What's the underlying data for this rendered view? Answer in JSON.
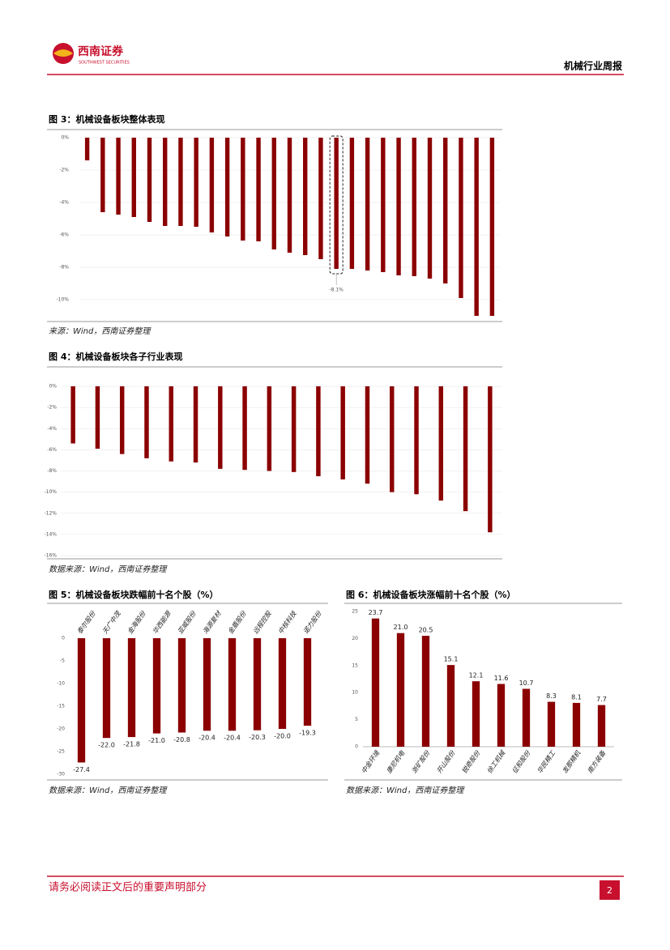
{
  "header": {
    "logo_cn": "西南证券",
    "logo_en": "SOUTHWEST SECURITIES",
    "report": "机械行业周报"
  },
  "chart_data": [
    {
      "type": "bar",
      "title": "图 3：机械设备板块整体表现",
      "source": "来源：Wind，西南证券整理",
      "color": "#8b0000",
      "grid": true,
      "categories": [
        null,
        null,
        null,
        null,
        null,
        null,
        null,
        null,
        null,
        null,
        null,
        null,
        null,
        null,
        null,
        null,
        null,
        null,
        null,
        null,
        null,
        null,
        null,
        null,
        null,
        null,
        null
      ],
      "values": [
        -1.4,
        -4.6,
        -4.75,
        -4.9,
        -5.2,
        -5.45,
        -5.45,
        -5.5,
        -5.85,
        -6.1,
        -6.35,
        -6.4,
        -6.9,
        -7.1,
        -7.25,
        -7.5,
        -8.1,
        -8.1,
        -8.2,
        -8.3,
        -8.5,
        -8.55,
        -8.7,
        -9.0,
        -9.9,
        -11.0,
        -11.0
      ],
      "annotation": "-8.1%",
      "ylim": [
        -11.2,
        0
      ],
      "yticks": [
        {
          "value": 0,
          "label": "0%"
        },
        {
          "value": -2,
          "label": "-2%"
        },
        {
          "value": -4,
          "label": "-4%"
        },
        {
          "value": -6,
          "label": "-6%"
        },
        {
          "value": -8,
          "label": "-8%"
        },
        {
          "value": -10,
          "label": "-10%"
        }
      ]
    },
    {
      "type": "bar",
      "title": "图 4：机械设备板块各子行业表现",
      "source": "数据来源：Wind，西南证券整理",
      "color": "#8b0000",
      "grid": true,
      "categories": [
        null,
        null,
        null,
        null,
        null,
        null,
        null,
        null,
        null,
        null,
        null,
        null,
        null,
        null,
        null,
        null,
        null,
        null
      ],
      "values": [
        -5.4,
        -5.9,
        -6.4,
        -6.8,
        -7.1,
        -7.2,
        -7.8,
        -7.9,
        -8.0,
        -8.1,
        -8.5,
        -8.8,
        -9.2,
        -10.0,
        -10.2,
        -10.8,
        -11.8,
        -13.8
      ],
      "ylim": [
        -16,
        0
      ],
      "yticks": [
        {
          "value": 0,
          "label": "0%"
        },
        {
          "value": -2,
          "label": "-2%"
        },
        {
          "value": -4,
          "label": "-4%"
        },
        {
          "value": -6,
          "label": "-6%"
        },
        {
          "value": -8,
          "label": "-8%"
        },
        {
          "value": -10,
          "label": "-10%"
        },
        {
          "value": -12,
          "label": "-12%"
        },
        {
          "value": -14,
          "label": "-14%"
        },
        {
          "value": -16,
          "label": "-16%"
        }
      ]
    },
    {
      "type": "bar",
      "title": "图 5：机械设备板块跌幅前十名个股（%）",
      "source": "数据来源：Wind，西南证券整理",
      "color": "#8b0000",
      "grid": false,
      "categories": [
        "泰尔股份",
        "天广中茂",
        "金海股份",
        "华西能源",
        "亚威股份",
        "海源复材",
        "金盾股份",
        "远程控股",
        "中核科技",
        "诺力股份"
      ],
      "values": [
        -27.4,
        -22.0,
        -21.8,
        -21.0,
        -20.8,
        -20.4,
        -20.4,
        -20.3,
        -20.0,
        -19.3
      ],
      "value_labels": [
        "-27.4",
        "-22.0",
        "-21.8",
        "-21.0",
        "-20.8",
        "-20.4",
        "-20.4",
        "-20.3",
        "-20.0",
        "-19.3"
      ],
      "ylim": [
        -30,
        0
      ],
      "yticks": [
        0,
        -5,
        -10,
        -15,
        -20,
        -25,
        -30
      ]
    },
    {
      "type": "bar",
      "title": "图 6：机械设备板块涨幅前十名个股（%）",
      "source": "数据来源：Wind，西南证券整理",
      "color": "#8b0000",
      "grid": false,
      "categories": [
        "中金环境",
        "康尼机电",
        "浙矿股份",
        "开山股份",
        "锐奇股份",
        "徐工机械",
        "征和股份",
        "华民精工",
        "发那精机",
        "南方装备"
      ],
      "values": [
        23.7,
        21.0,
        20.5,
        15.1,
        12.1,
        11.6,
        10.7,
        8.3,
        8.1,
        7.7
      ],
      "value_labels": [
        "23.7",
        "21.0",
        "20.5",
        "15.1",
        "12.1",
        "11.6",
        "10.7",
        "8.3",
        "8.1",
        "7.7"
      ],
      "ylim": [
        0,
        25
      ],
      "yticks": [
        0,
        5,
        10,
        15,
        20,
        25
      ]
    }
  ],
  "footer": {
    "notice": "请务必阅读正文后的重要声明部分",
    "page": "2"
  }
}
